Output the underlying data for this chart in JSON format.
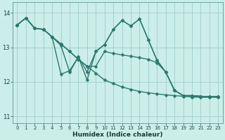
{
  "xlabel": "Humidex (Indice chaleur)",
  "xlim": [
    -0.5,
    23.5
  ],
  "ylim": [
    10.8,
    14.3
  ],
  "yticks": [
    11,
    12,
    13,
    14
  ],
  "xticks": [
    0,
    1,
    2,
    3,
    4,
    5,
    6,
    7,
    8,
    9,
    10,
    11,
    12,
    13,
    14,
    15,
    16,
    17,
    18,
    19,
    20,
    21,
    22,
    23
  ],
  "bg_color": "#cceee8",
  "grid_color": "#9dcdc7",
  "line_color": "#2a7a6e",
  "lines": [
    [
      13.65,
      13.85,
      13.55,
      13.52,
      13.3,
      13.1,
      12.88,
      12.65,
      12.45,
      12.25,
      12.05,
      11.95,
      11.85,
      11.78,
      11.72,
      11.68,
      11.65,
      11.62,
      11.6,
      11.58,
      11.56,
      11.55,
      11.55,
      11.55
    ],
    [
      13.65,
      13.85,
      13.55,
      13.52,
      13.3,
      13.1,
      12.88,
      12.65,
      12.45,
      12.45,
      12.88,
      12.82,
      12.78,
      12.74,
      12.7,
      12.65,
      12.55,
      12.28,
      11.75,
      11.6,
      11.6,
      11.58,
      11.57,
      11.57
    ],
    [
      13.65,
      13.85,
      13.55,
      13.52,
      13.3,
      13.05,
      12.28,
      12.72,
      12.28,
      12.88,
      13.08,
      13.52,
      13.78,
      13.62,
      13.82,
      13.22,
      12.62,
      12.28,
      11.75,
      11.6,
      11.6,
      11.58,
      11.57,
      11.57
    ],
    [
      13.65,
      13.85,
      13.55,
      13.52,
      13.3,
      12.22,
      12.32,
      12.72,
      12.05,
      12.88,
      13.08,
      13.52,
      13.78,
      13.62,
      13.82,
      13.22,
      12.62,
      12.28,
      11.75,
      11.6,
      11.6,
      11.58,
      11.57,
      11.57
    ]
  ],
  "markersize": 2.5,
  "linewidth": 1.0
}
